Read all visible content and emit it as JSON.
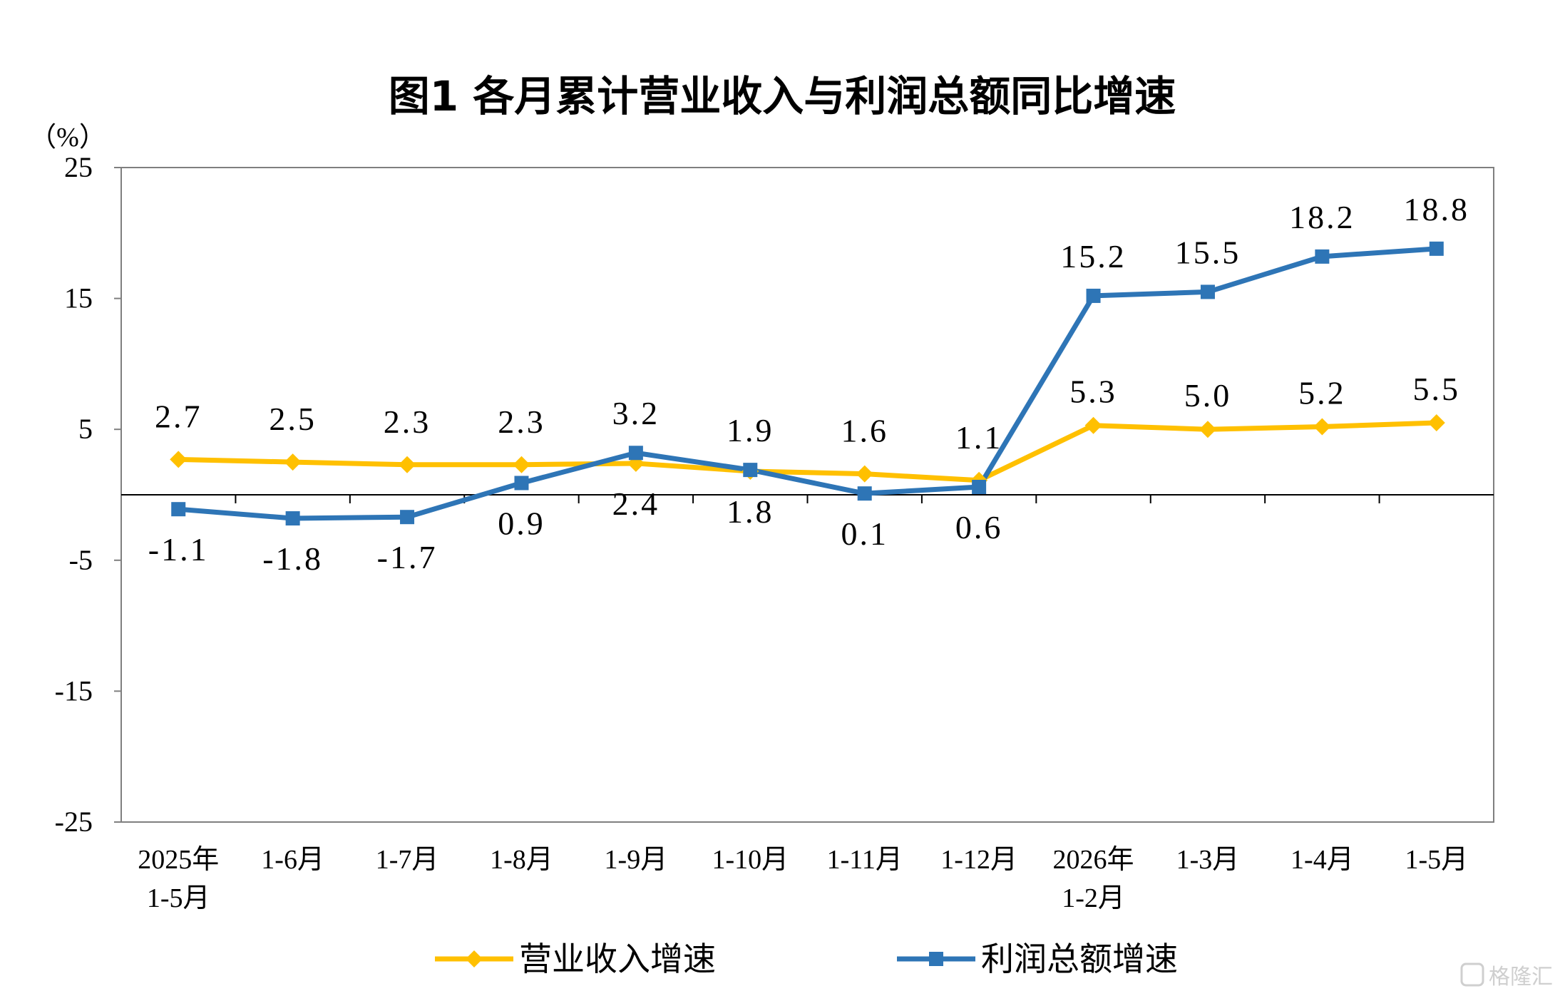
{
  "chart_data": {
    "type": "line",
    "title": "图1  各月累计营业收入与利润总额同比增速",
    "ylabel": "（%）",
    "ylim": [
      -25,
      25
    ],
    "yticks": [
      25,
      15,
      5,
      -5,
      -15,
      -25
    ],
    "categories": [
      "2025年\n1-5月",
      "1-6月",
      "1-7月",
      "1-8月",
      "1-9月",
      "1-10月",
      "1-11月",
      "1-12月",
      "2026年\n1-2月",
      "1-3月",
      "1-4月",
      "1-5月"
    ],
    "series": [
      {
        "name": "营业收入增速",
        "color": "#FFC000",
        "marker": "diamond",
        "values": [
          2.7,
          2.5,
          2.3,
          2.3,
          2.4,
          1.8,
          1.6,
          1.1,
          5.3,
          5.0,
          5.2,
          5.5
        ],
        "labels": [
          "2.7",
          "2.5",
          "2.3",
          "2.3",
          "2.4",
          "1.8",
          "1.6",
          "1.1",
          "5.3",
          "5.0",
          "5.2",
          "5.5"
        ]
      },
      {
        "name": "利润总额增速",
        "color": "#2E75B6",
        "marker": "square",
        "values": [
          -1.1,
          -1.8,
          -1.7,
          0.9,
          3.2,
          1.9,
          0.1,
          0.6,
          15.2,
          15.5,
          18.2,
          18.8
        ],
        "labels": [
          "-1.1",
          "-1.8",
          "-1.7",
          "0.9",
          "3.2",
          "1.9",
          "0.1",
          "0.6",
          "15.2",
          "15.5",
          "18.2",
          "18.8"
        ]
      }
    ],
    "grid": false,
    "legend": "bottom"
  },
  "watermark": "格隆汇"
}
